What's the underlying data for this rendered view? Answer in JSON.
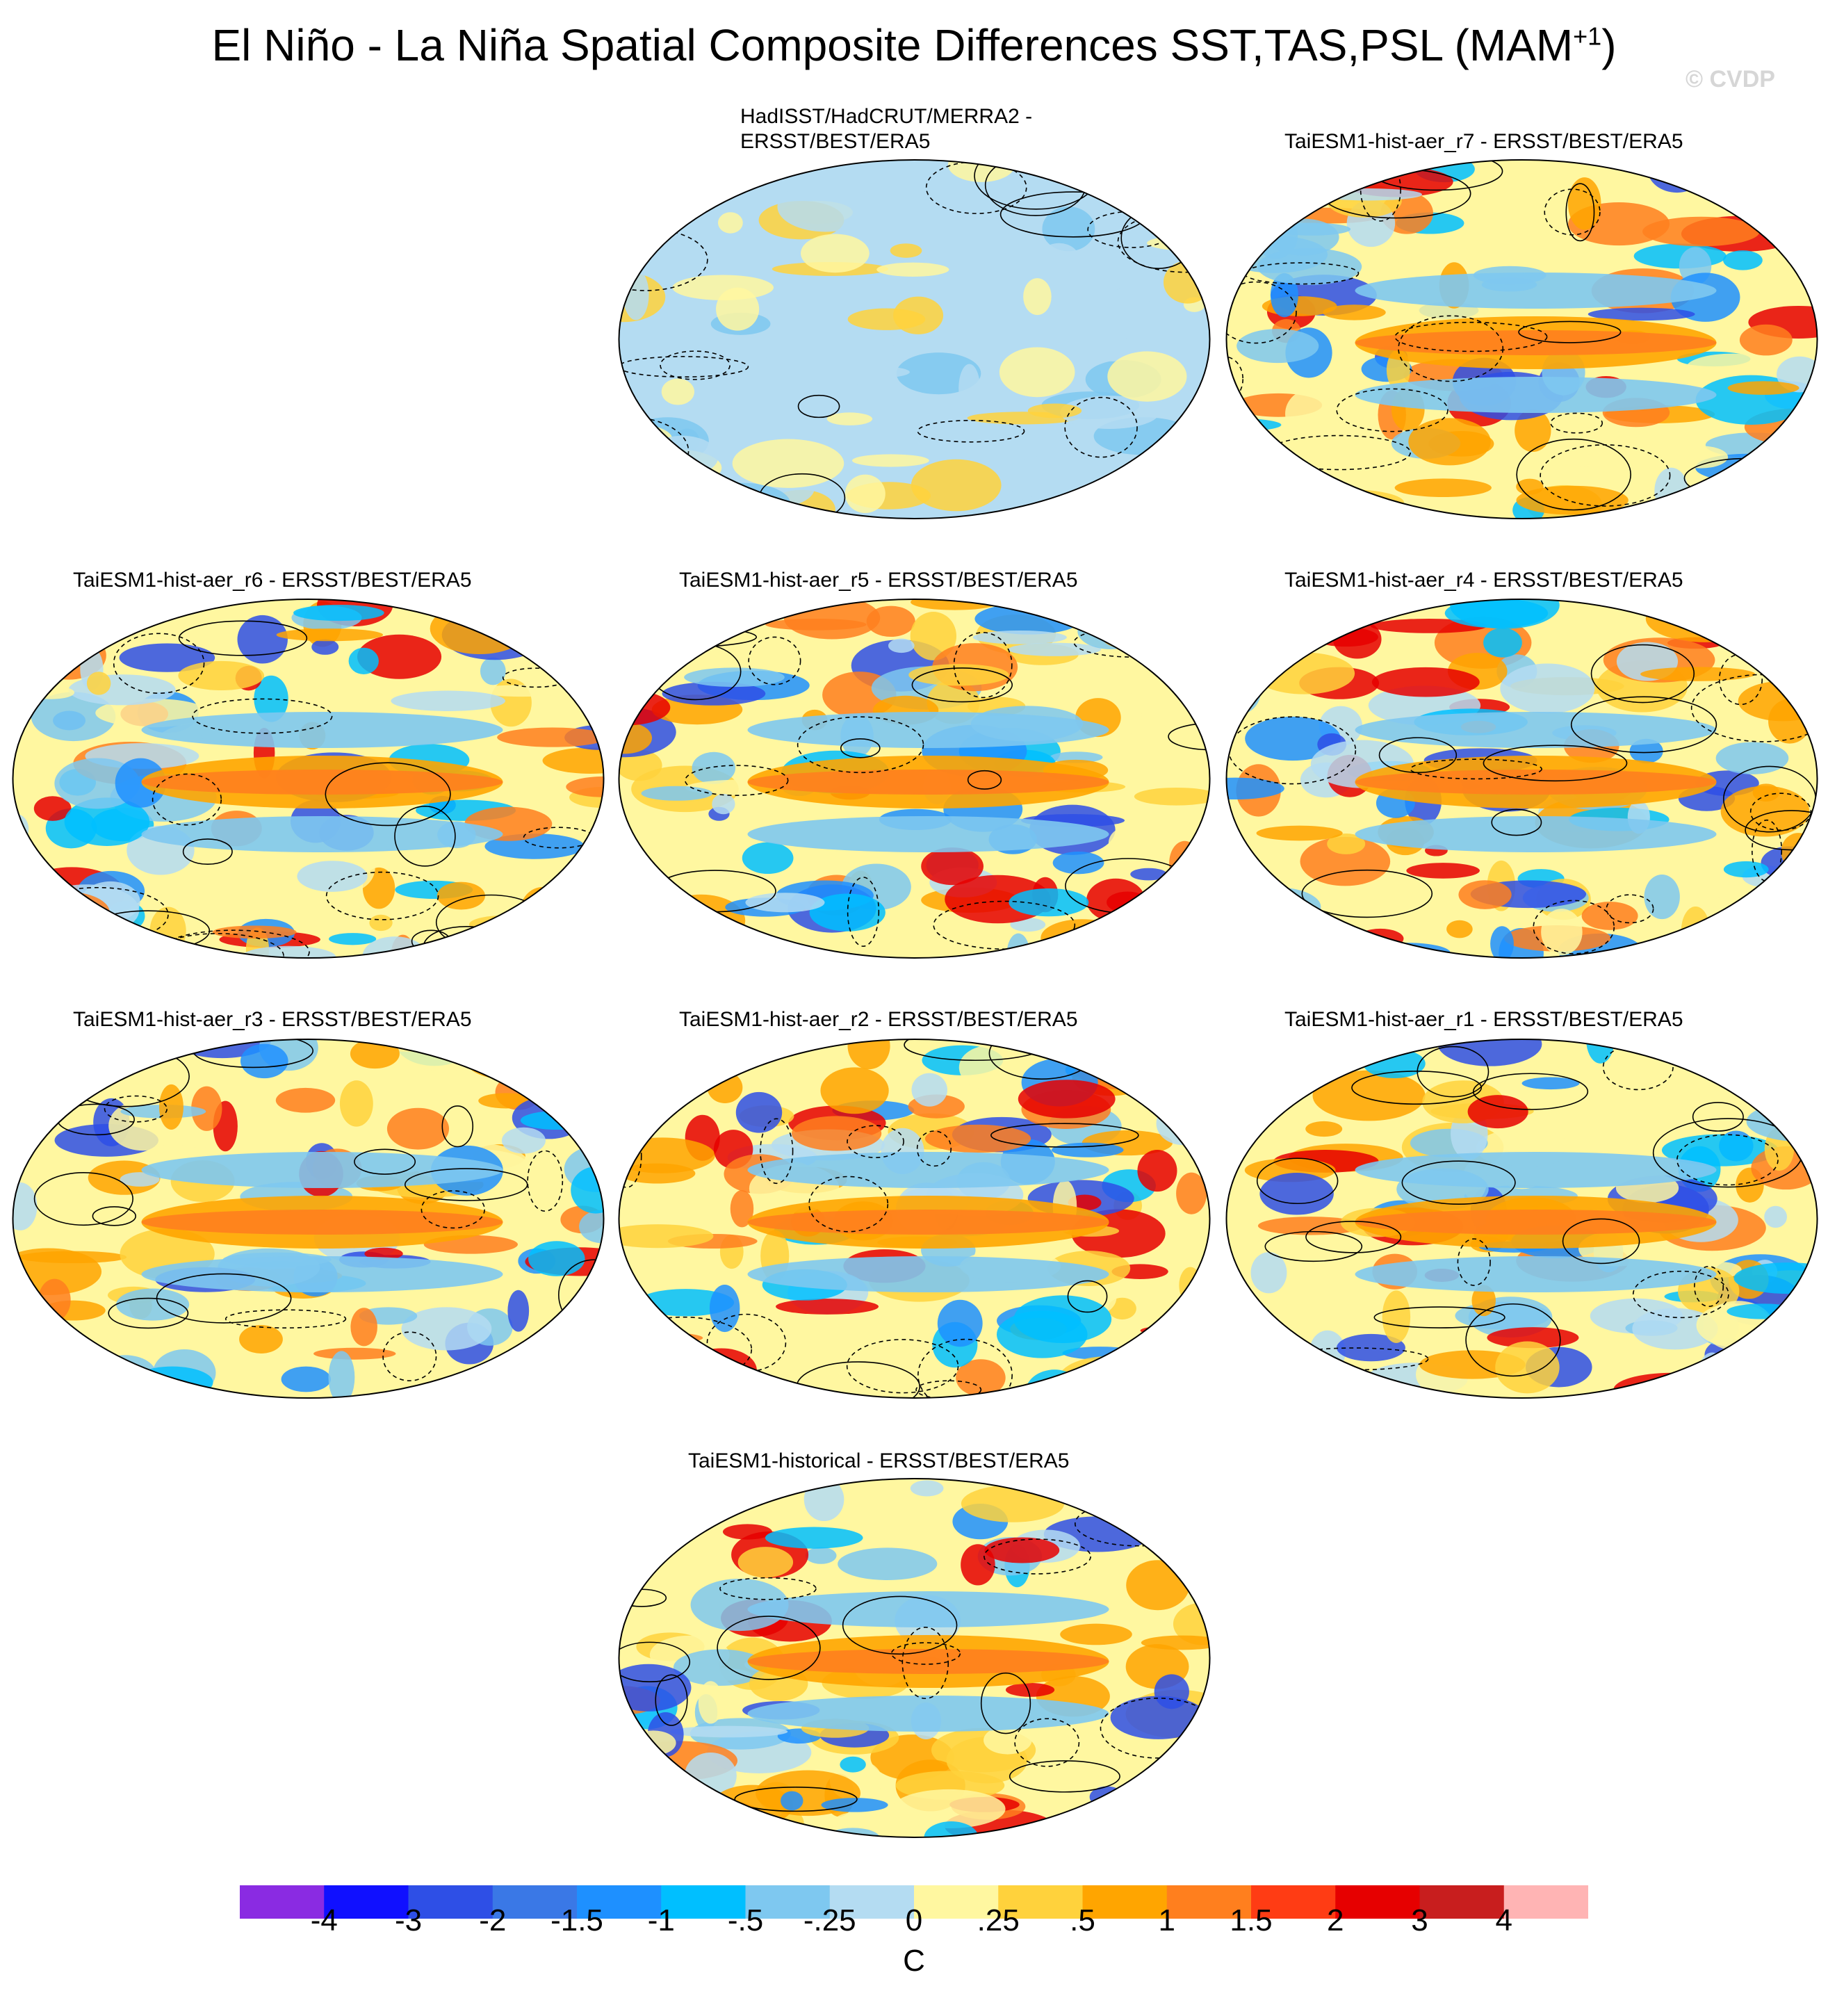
{
  "title": {
    "main": "El Niño - La Niña Spatial Composite Differences SST,TAS,PSL (MAM",
    "sup": "+1",
    "close": ")"
  },
  "watermark": "© CVDP",
  "panels": [
    {
      "id": "obs",
      "title_lines": [
        "HadISST/HadCRUT/MERRA2 -",
        "ERSST/BEST/ERA5"
      ],
      "pattern": "obs"
    },
    {
      "id": "r7",
      "title_lines": [
        "TaiESM1-hist-aer_r7 - ERSST/BEST/ERA5"
      ],
      "pattern": "model"
    },
    {
      "id": "r6",
      "title_lines": [
        "TaiESM1-hist-aer_r6 - ERSST/BEST/ERA5"
      ],
      "pattern": "model"
    },
    {
      "id": "r5",
      "title_lines": [
        "TaiESM1-hist-aer_r5 - ERSST/BEST/ERA5"
      ],
      "pattern": "model"
    },
    {
      "id": "r4",
      "title_lines": [
        "TaiESM1-hist-aer_r4 - ERSST/BEST/ERA5"
      ],
      "pattern": "model"
    },
    {
      "id": "r3",
      "title_lines": [
        "TaiESM1-hist-aer_r3 - ERSST/BEST/ERA5"
      ],
      "pattern": "model"
    },
    {
      "id": "r2",
      "title_lines": [
        "TaiESM1-hist-aer_r2 - ERSST/BEST/ERA5"
      ],
      "pattern": "model"
    },
    {
      "id": "r1",
      "title_lines": [
        "TaiESM1-hist-aer_r1 - ERSST/BEST/ERA5"
      ],
      "pattern": "model"
    },
    {
      "id": "hist",
      "title_lines": [
        "TaiESM1-historical - ERSST/BEST/ERA5"
      ],
      "pattern": "model"
    }
  ],
  "colorbar": {
    "colors": [
      "#8a2be2",
      "#1010ff",
      "#2e4fe6",
      "#3a78e6",
      "#1e90ff",
      "#00bfff",
      "#7ec8f0",
      "#b4dcf2",
      "#fff7a0",
      "#ffd23c",
      "#ffa500",
      "#ff7f1e",
      "#ff3c14",
      "#e60000",
      "#c81e1e",
      "#ffb4b4"
    ],
    "labels": [
      "-4",
      "-3",
      "-2",
      "-1.5",
      "-1",
      "-.5",
      "-.25",
      "0",
      ".25",
      ".5",
      "1",
      "1.5",
      "2",
      "3",
      "4"
    ],
    "unit": "C"
  }
}
